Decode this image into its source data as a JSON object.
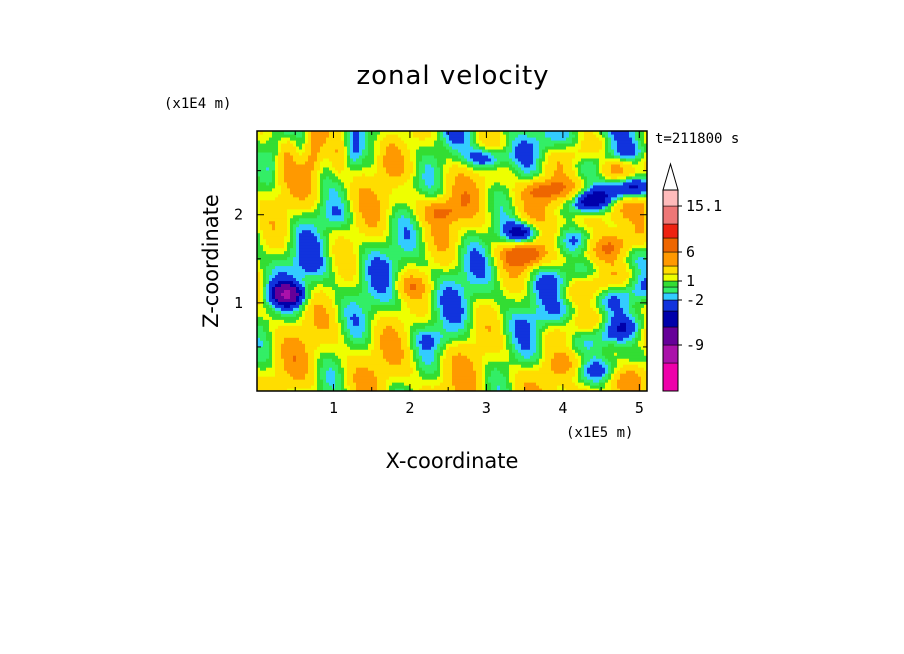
{
  "chart_data": {
    "type": "heatmap",
    "title": "zonal velocity",
    "xlabel": "X-coordinate",
    "ylabel": "Z-coordinate",
    "x_multiplier_label": "(x1E5 m)",
    "y_multiplier_label": "(x1E4 m)",
    "time_label": "t=211800 s",
    "xlim": [
      0,
      5.1
    ],
    "ylim": [
      0,
      2.95
    ],
    "x_ticks": [
      {
        "value": 1,
        "label": "1"
      },
      {
        "value": 2,
        "label": "2"
      },
      {
        "value": 3,
        "label": "3"
      },
      {
        "value": 4,
        "label": "4"
      },
      {
        "value": 5,
        "label": "5"
      }
    ],
    "y_ticks": [
      {
        "value": 1,
        "label": "1"
      },
      {
        "value": 2,
        "label": "2"
      }
    ],
    "colorbar": {
      "levels": [
        -15,
        -12,
        -9,
        -6,
        -4,
        -2,
        -1,
        0,
        1,
        2,
        4,
        6,
        9,
        12,
        15.1
      ],
      "colors": [
        "#ee00aa",
        "#aa11aa",
        "#660099",
        "#0000aa",
        "#1133dd",
        "#33ccff",
        "#33ee66",
        "#33dd33",
        "#eeff00",
        "#ffdd00",
        "#ff9900",
        "#ee6600",
        "#ee2211",
        "#ee7777",
        "#ffbbbb"
      ],
      "labels": [
        {
          "value": 15.1,
          "label": "15.1"
        },
        {
          "value": 6,
          "label": "6"
        },
        {
          "value": 1,
          "label": "1"
        },
        {
          "value": -2,
          "label": "-2"
        },
        {
          "value": -9,
          "label": "-9"
        }
      ],
      "extend": "max"
    },
    "features": [
      {
        "x": 0.4,
        "z": 1.1,
        "value": -7
      },
      {
        "x": 3.5,
        "z": 1.8,
        "value": -8
      },
      {
        "x": 3.0,
        "z": 2.65,
        "value": -6
      },
      {
        "x": 4.9,
        "z": 2.3,
        "value": -7
      },
      {
        "x": 4.3,
        "z": 2.15,
        "value": -5
      },
      {
        "x": 3.5,
        "z": 1.55,
        "value": 7
      },
      {
        "x": 3.7,
        "z": 2.3,
        "value": 5
      },
      {
        "x": 4.7,
        "z": 2.55,
        "value": 5
      },
      {
        "x": 2.4,
        "z": 2.05,
        "value": 4
      },
      {
        "x": 2.0,
        "z": 1.2,
        "value": 3
      },
      {
        "x": 1.9,
        "z": 2.35,
        "value": -2
      },
      {
        "x": 1.0,
        "z": 2.0,
        "value": -1.5
      },
      {
        "x": 0.7,
        "z": 1.4,
        "value": -1
      },
      {
        "x": 2.3,
        "z": 0.6,
        "value": -2
      }
    ]
  }
}
